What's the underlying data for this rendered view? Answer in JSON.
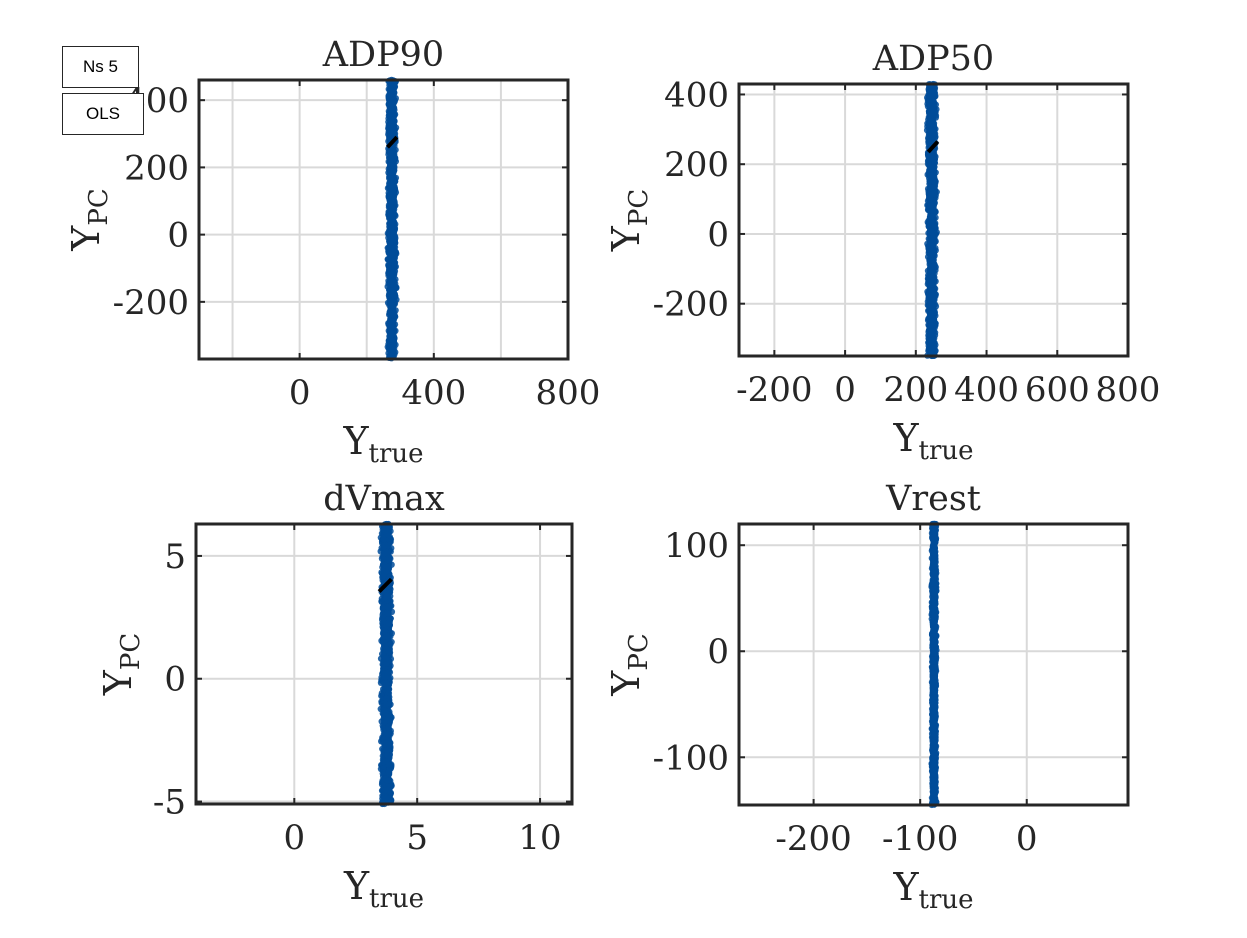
{
  "annotations": {
    "ns": "Ns 5",
    "method": "OLS"
  },
  "colors": {
    "points": "#004c99",
    "fit": "#000000",
    "grid": "#d9d9d9",
    "axis": "#262626"
  },
  "axis_label_main": "Y",
  "axis_sub_x": "true",
  "axis_sub_y": "PC",
  "chart_data": [
    {
      "type": "scatter",
      "title": "ADP90",
      "xlabel": "Y_true",
      "ylabel": "Y_PC",
      "xlim": [
        -300,
        800
      ],
      "ylim": [
        -370,
        460
      ],
      "xticks": [
        0,
        400,
        800
      ],
      "xtick_labels": [
        "0",
        "400",
        "800"
      ],
      "xgrid": [
        -200,
        0,
        200,
        400,
        600,
        800
      ],
      "yticks": [
        -200,
        0,
        200,
        400
      ],
      "ytick_labels": [
        "-200",
        "0",
        "200",
        "400"
      ],
      "grid": true,
      "x_center": 275,
      "x_spread": 30,
      "y_range": [
        -370,
        460
      ],
      "fit_line": [
        [
          262,
          260
        ],
        [
          290,
          290
        ]
      ]
    },
    {
      "type": "scatter",
      "title": "ADP50",
      "xlabel": "Y_true",
      "ylabel": "Y_PC",
      "xlim": [
        -300,
        800
      ],
      "ylim": [
        -350,
        430
      ],
      "xticks": [
        -200,
        0,
        200,
        400,
        600,
        800
      ],
      "xtick_labels": [
        "-200",
        "0",
        "200",
        "400",
        "600",
        "800"
      ],
      "xgrid": [
        -200,
        0,
        200,
        400,
        600,
        800
      ],
      "yticks": [
        -200,
        0,
        200,
        400
      ],
      "ytick_labels": [
        "-200",
        "0",
        "200",
        "400"
      ],
      "grid": true,
      "x_center": 245,
      "x_spread": 30,
      "y_range": [
        -350,
        430
      ],
      "fit_line": [
        [
          235,
          235
        ],
        [
          262,
          265
        ]
      ]
    },
    {
      "type": "scatter",
      "title": "dVmax",
      "xlabel": "Y_true",
      "ylabel": "Y_PC",
      "xlim": [
        -4,
        11.3
      ],
      "ylim": [
        -5.1,
        6.3
      ],
      "xticks": [
        0,
        5,
        10
      ],
      "xtick_labels": [
        "0",
        "5",
        "10"
      ],
      "xgrid": [
        0,
        5,
        10
      ],
      "yticks": [
        -5,
        0,
        5
      ],
      "ytick_labels": [
        "-5",
        "0",
        "5"
      ],
      "grid": true,
      "x_center": 3.75,
      "x_spread": 0.5,
      "y_range": [
        -5.1,
        6.3
      ],
      "fit_line": [
        [
          3.45,
          3.55
        ],
        [
          3.95,
          4.05
        ]
      ]
    },
    {
      "type": "scatter",
      "title": "Vrest",
      "xlabel": "Y_true",
      "ylabel": "Y_PC",
      "xlim": [
        -270,
        95
      ],
      "ylim": [
        -145,
        120
      ],
      "xticks": [
        -200,
        -100,
        0
      ],
      "xtick_labels": [
        "-200",
        "-100",
        "0"
      ],
      "xgrid": [
        -200,
        -100,
        0
      ],
      "yticks": [
        -100,
        0,
        100
      ],
      "ytick_labels": [
        "-100",
        "0",
        "100"
      ],
      "grid": true,
      "x_center": -87,
      "x_spread": 5,
      "y_range": [
        -145,
        120
      ],
      "fit_line": []
    }
  ]
}
